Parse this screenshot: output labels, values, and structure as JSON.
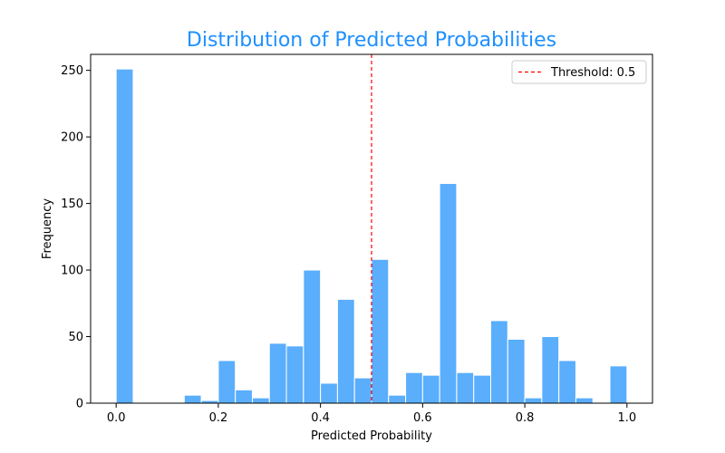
{
  "colors": {
    "title": "#1e90ff",
    "bar": "#5aaefc",
    "bar_edge": "#ffffff",
    "threshold": "#ff0000",
    "axis": "#000000"
  },
  "chart_data": {
    "type": "bar",
    "title": "Distribution of Predicted Probabilities",
    "xlabel": "Predicted Probability",
    "ylabel": "Frequency",
    "xlim": [
      -0.05,
      1.05
    ],
    "ylim": [
      0,
      262
    ],
    "x_ticks": [
      0.0,
      0.2,
      0.4,
      0.6,
      0.8,
      1.0
    ],
    "x_tick_labels": [
      "0.0",
      "0.2",
      "0.4",
      "0.6",
      "0.8",
      "1.0"
    ],
    "y_ticks": [
      0,
      50,
      100,
      150,
      200,
      250
    ],
    "y_tick_labels": [
      "0",
      "50",
      "100",
      "150",
      "200",
      "250"
    ],
    "bin_width": 0.0333,
    "bins": [
      {
        "x0": 0.0,
        "count": 251
      },
      {
        "x0": 0.0333,
        "count": 0
      },
      {
        "x0": 0.0667,
        "count": 0
      },
      {
        "x0": 0.1,
        "count": 0
      },
      {
        "x0": 0.1333,
        "count": 6
      },
      {
        "x0": 0.1667,
        "count": 2
      },
      {
        "x0": 0.2,
        "count": 32
      },
      {
        "x0": 0.2333,
        "count": 10
      },
      {
        "x0": 0.2667,
        "count": 4
      },
      {
        "x0": 0.3,
        "count": 45
      },
      {
        "x0": 0.3333,
        "count": 43
      },
      {
        "x0": 0.3667,
        "count": 100
      },
      {
        "x0": 0.4,
        "count": 15
      },
      {
        "x0": 0.4333,
        "count": 78
      },
      {
        "x0": 0.4667,
        "count": 19
      },
      {
        "x0": 0.5,
        "count": 108
      },
      {
        "x0": 0.5333,
        "count": 6
      },
      {
        "x0": 0.5667,
        "count": 23
      },
      {
        "x0": 0.6,
        "count": 21
      },
      {
        "x0": 0.6333,
        "count": 165
      },
      {
        "x0": 0.6667,
        "count": 23
      },
      {
        "x0": 0.7,
        "count": 21
      },
      {
        "x0": 0.7333,
        "count": 62
      },
      {
        "x0": 0.7667,
        "count": 48
      },
      {
        "x0": 0.8,
        "count": 4
      },
      {
        "x0": 0.8333,
        "count": 50
      },
      {
        "x0": 0.8667,
        "count": 32
      },
      {
        "x0": 0.9,
        "count": 4
      },
      {
        "x0": 0.9333,
        "count": 0
      },
      {
        "x0": 0.9667,
        "count": 28
      }
    ],
    "threshold": {
      "value": 0.5,
      "label": "Threshold: 0.5",
      "style": "dashed"
    },
    "legend": {
      "placement": "top-right"
    },
    "grid": false
  }
}
